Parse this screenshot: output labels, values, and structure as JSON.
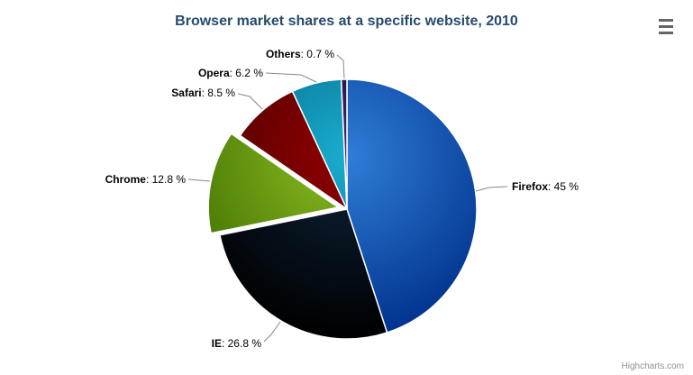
{
  "chart_data": {
    "type": "pie",
    "title": "Browser market shares at a specific website, 2010",
    "legend": false,
    "label_separator": ": ",
    "label_suffix": " %",
    "connector_color": "#888888",
    "border_color": "#ffffff",
    "points": [
      {
        "name": "Firefox",
        "value": 45,
        "color": "#2f7ed8",
        "sliced": false
      },
      {
        "name": "IE",
        "value": 26.8,
        "color": "#0d233a",
        "sliced": false
      },
      {
        "name": "Chrome",
        "value": 12.8,
        "color": "#8bbc21",
        "sliced": true
      },
      {
        "name": "Safari",
        "value": 8.5,
        "color": "#910000",
        "sliced": false
      },
      {
        "name": "Opera",
        "value": 6.2,
        "color": "#1aadce",
        "sliced": false
      },
      {
        "name": "Others",
        "value": 0.7,
        "color": "#492970",
        "sliced": false
      }
    ]
  },
  "title_color": "#274b6d",
  "context_menu": {
    "icon": "hamburger-menu-icon"
  },
  "credit_label": "Highcharts.com"
}
